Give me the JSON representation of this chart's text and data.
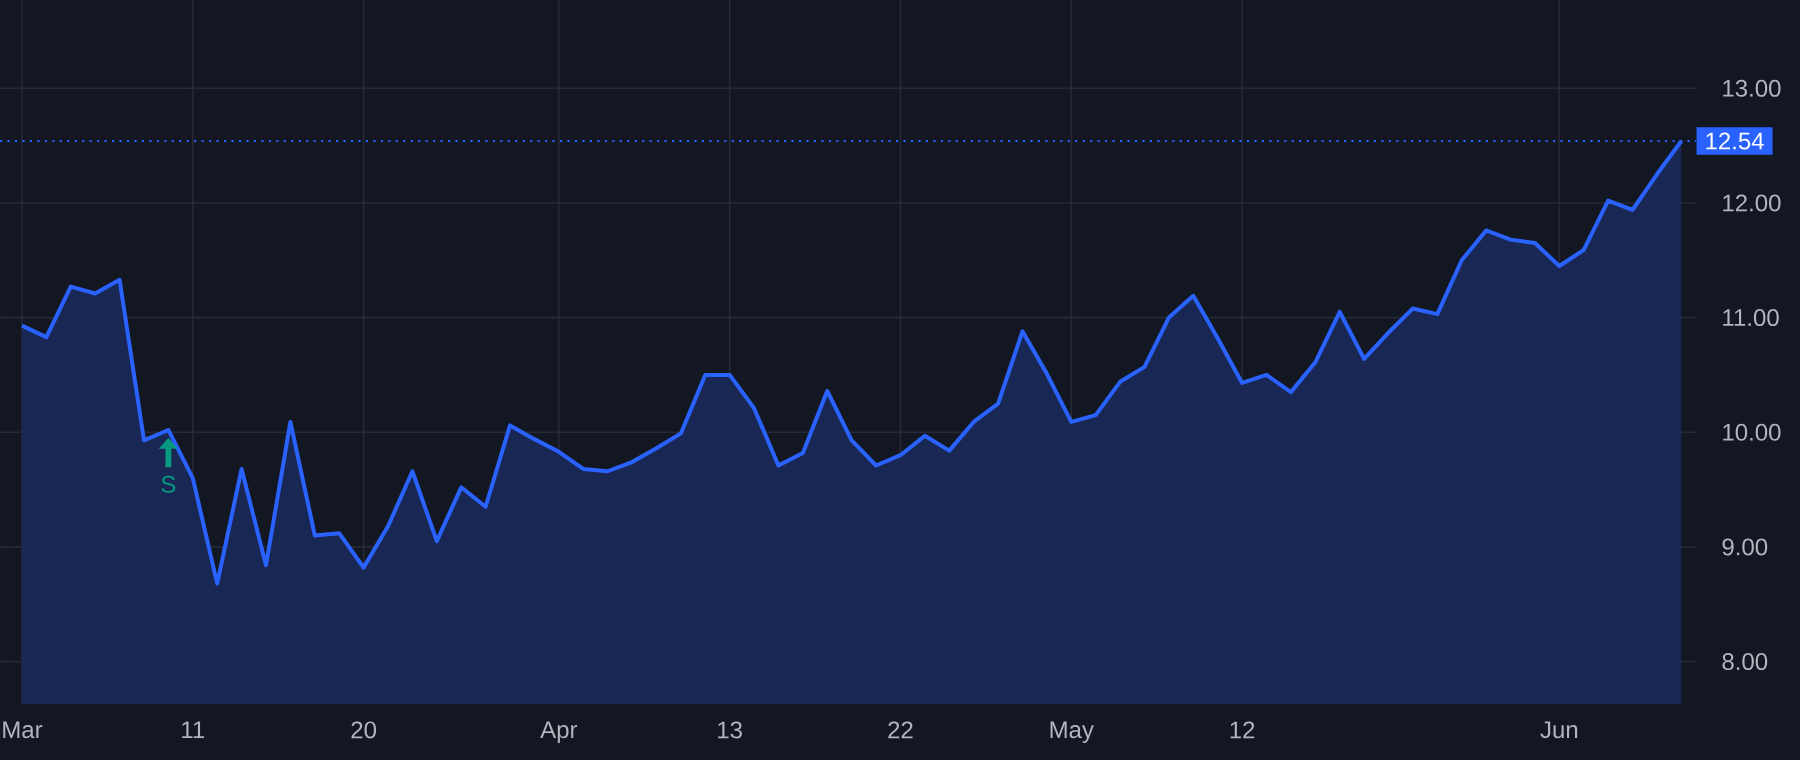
{
  "chart_data": {
    "type": "area",
    "categories": [
      "Mar",
      null,
      null,
      null,
      null,
      null,
      null,
      "11",
      null,
      null,
      null,
      null,
      null,
      null,
      "20",
      null,
      null,
      null,
      null,
      null,
      null,
      null,
      "Apr",
      null,
      null,
      null,
      null,
      null,
      null,
      "13",
      null,
      null,
      null,
      null,
      null,
      null,
      "22",
      null,
      null,
      null,
      null,
      null,
      null,
      "May",
      null,
      null,
      null,
      null,
      null,
      null,
      "12",
      null,
      null,
      null,
      null,
      null,
      null,
      null,
      null,
      null,
      null,
      null,
      null,
      "Jun",
      null,
      null,
      null,
      null,
      null
    ],
    "series": [
      {
        "color": "#2962ff",
        "values": [
          10.93,
          10.83,
          11.27,
          11.21,
          11.33,
          9.93,
          10.02,
          9.6,
          8.68,
          9.68,
          8.84,
          10.09,
          9.1,
          9.12,
          8.82,
          9.18,
          9.66,
          9.05,
          9.52,
          9.35,
          10.06,
          9.94,
          9.83,
          9.68,
          9.66,
          9.74,
          9.86,
          9.99,
          10.5,
          10.5,
          10.21,
          9.71,
          9.82,
          10.36,
          9.93,
          9.71,
          9.8,
          9.97,
          9.84,
          10.09,
          10.25,
          10.88,
          10.51,
          10.09,
          10.15,
          10.44,
          10.57,
          11.0,
          11.19,
          10.82,
          10.43,
          10.5,
          10.35,
          10.61,
          11.05,
          10.64,
          10.87,
          11.08,
          11.03,
          11.5,
          11.76,
          11.68,
          11.65,
          11.45,
          11.59,
          12.02,
          11.94,
          12.25,
          12.54
        ]
      }
    ],
    "ylim": [
      7.63,
      13.77
    ],
    "yticks": [
      {
        "value": 8,
        "label": "8.00"
      },
      {
        "value": 9,
        "label": "9.00"
      },
      {
        "value": 10,
        "label": "10.00"
      },
      {
        "value": 11,
        "label": "11.00"
      },
      {
        "value": 12,
        "label": "12.00"
      },
      {
        "value": 13,
        "label": "13.00"
      }
    ],
    "grid": true,
    "ref_lines": [
      {
        "axis": "y",
        "value": 12.54,
        "label": "12.54",
        "color": "#2962ff",
        "line_style": "dotted"
      }
    ],
    "annotations": [
      {
        "text": "S",
        "y": 10.02
      }
    ]
  }
}
